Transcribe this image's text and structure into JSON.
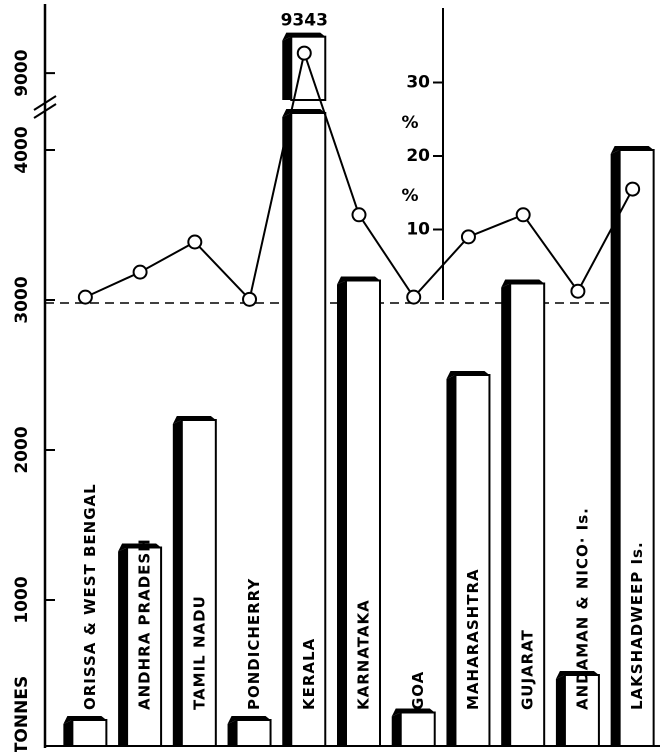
{
  "chart_data": {
    "type": "bar",
    "y_label": "TONNES",
    "y2_labels": [
      "%",
      "%"
    ],
    "categories": [
      "ORISSA & WEST BENGAL",
      "ANDHRA PRADESH",
      "TAMIL NADU",
      "PONDICHERRY",
      "KERALA",
      "KARNATAKA",
      "GOA",
      "MAHARASHTRA",
      "GUJARAT",
      "ANDAMAN & NICO· Is.",
      "LAKSHADWEEP Is."
    ],
    "series": [
      {
        "values": [
          200,
          1350,
          2200,
          200,
          9343,
          3130,
          250,
          2500,
          3110,
          500,
          4000
        ],
        "value_labels": [
          null,
          null,
          null,
          null,
          "9343",
          null,
          null,
          null,
          null,
          null,
          null
        ],
        "color": "#ffffff"
      },
      {
        "axis": "y2",
        "values": [
          0.8,
          4.2,
          8.3,
          0.5,
          34,
          12,
          0.8,
          9,
          12,
          1.6,
          15.5
        ],
        "color": "#000000"
      }
    ],
    "ylim": [
      0,
      9500
    ],
    "ybreak": [
      4300,
      8700
    ],
    "yticks": [
      1000,
      2000,
      3000,
      4000,
      9000
    ],
    "y2lim": [
      0,
      40
    ],
    "y2ticks": [
      10,
      20,
      30
    ]
  }
}
